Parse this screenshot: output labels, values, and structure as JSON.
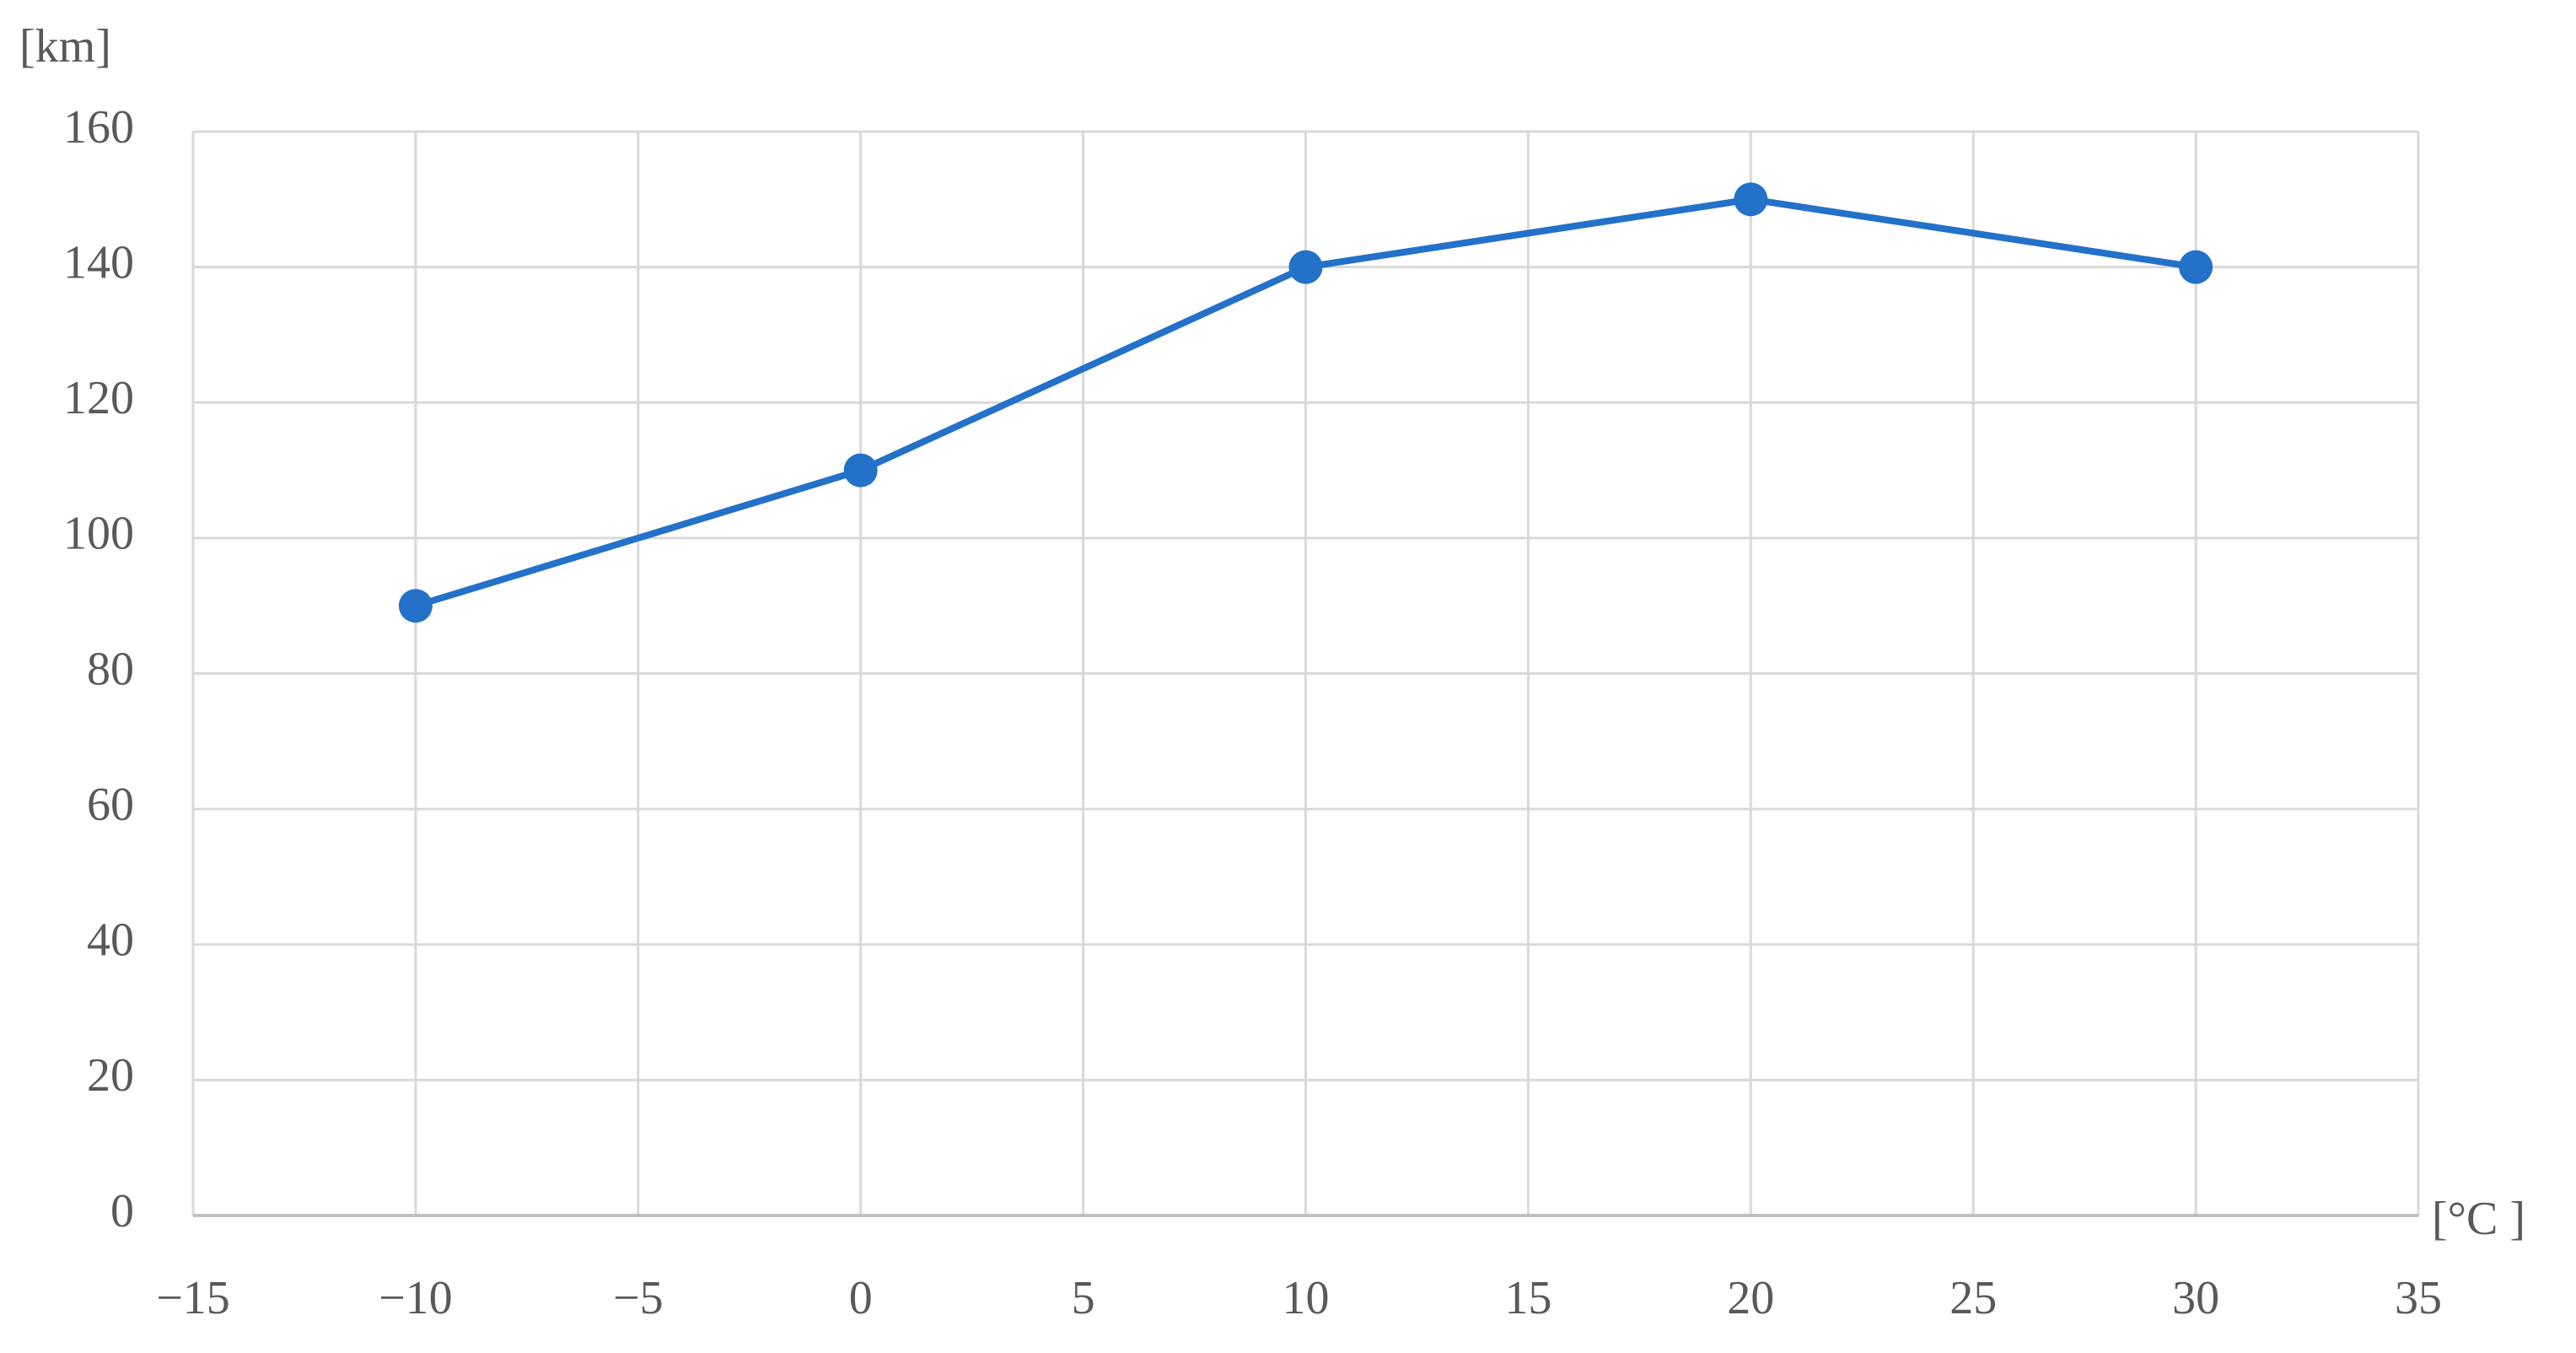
{
  "chart_data": {
    "type": "line",
    "y_label": "[km]",
    "x_label": "[°C ]",
    "x": [
      -10,
      0,
      10,
      20,
      30
    ],
    "values": [
      90,
      110,
      140,
      150,
      140
    ],
    "color": "#2371c8",
    "xlim": [
      -15,
      35
    ],
    "xticks": [
      {
        "value": -15,
        "label": "−15"
      },
      {
        "value": -10,
        "label": "−10"
      },
      {
        "value": -5,
        "label": "−5"
      },
      0,
      5,
      10,
      15,
      20,
      25,
      30,
      35
    ],
    "ylim": [
      0,
      160
    ],
    "yticks": [
      0,
      20,
      40,
      60,
      80,
      100,
      120,
      140,
      160
    ],
    "grid": true
  }
}
